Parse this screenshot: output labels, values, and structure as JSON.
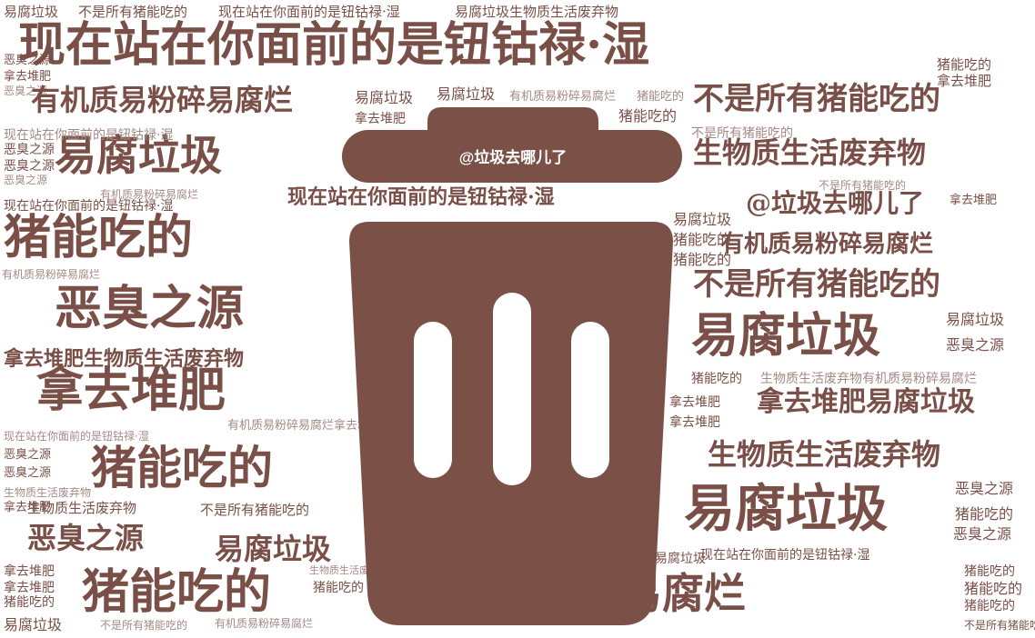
{
  "colors": {
    "word_primary": "#7a4f47",
    "word_light": "#a48a84",
    "can": "#7a5047",
    "background": "#ffffff"
  },
  "trash_can": {
    "icon": "trash-can-icon",
    "handle_label": "@垃圾去哪儿了"
  },
  "words": [
    {
      "text": "易腐垃圾",
      "cls": "tiny",
      "size": 15
    },
    {
      "text": "不是所有猪能吃的",
      "cls": "tiny",
      "size": 15
    },
    {
      "text": "现在站在你面前的是钮钴禄·湿",
      "cls": "tiny",
      "size": 15
    },
    {
      "text": "易腐垃圾生物质生活废弃物",
      "cls": "tiny",
      "size": 15
    },
    {
      "text": "现在站在你面前的是钮钴禄·湿",
      "cls": "big",
      "size": 52
    },
    {
      "text": "恶臭之源",
      "cls": "tiny",
      "size": 13
    },
    {
      "text": "拿去堆肥",
      "cls": "tiny",
      "size": 13
    },
    {
      "text": "恶臭之源",
      "cls": "tiny",
      "size": 12
    },
    {
      "text": "有机质易粉碎易腐烂",
      "cls": "mid",
      "size": 32
    },
    {
      "text": "易腐垃圾",
      "cls": "tiny",
      "size": 16
    },
    {
      "text": "易腐垃圾",
      "cls": "tiny",
      "size": 16
    },
    {
      "text": "有机质易粉碎易腐烂",
      "cls": "tiny",
      "size": 13
    },
    {
      "text": "猪能吃的",
      "cls": "tiny",
      "size": 13
    },
    {
      "text": "猪能吃的",
      "cls": "tiny",
      "size": 16
    },
    {
      "text": "不是所有猪能吃的",
      "cls": "mid",
      "size": 34
    },
    {
      "text": "拿去堆肥",
      "cls": "tiny",
      "size": 15
    },
    {
      "text": "猪能吃的",
      "cls": "tiny",
      "size": 15
    },
    {
      "text": "不是所有猪能吃的",
      "cls": "tiny",
      "size": 12
    },
    {
      "text": "拿去堆肥",
      "cls": "tiny",
      "size": 14
    },
    {
      "text": "易腐垃圾",
      "cls": "big",
      "size": 46
    },
    {
      "text": "生物质生活废弃物",
      "cls": "mid",
      "size": 32
    },
    {
      "text": "恶臭之源",
      "cls": "tiny",
      "size": 14
    },
    {
      "text": "恶臭之源",
      "cls": "tiny",
      "size": 14
    },
    {
      "text": "现在站在你面前的是钮钴禄·湿",
      "cls": "tiny",
      "size": 14
    },
    {
      "text": "不是所有猪能吃的",
      "cls": "tiny",
      "size": 14
    },
    {
      "text": "恶臭之源",
      "cls": "tiny",
      "size": 12
    },
    {
      "text": "现在站在你面前的是钮钴禄·湿",
      "cls": "mid",
      "size": 22
    },
    {
      "text": "@垃圾去哪儿了",
      "cls": "mid",
      "size": 28
    },
    {
      "text": "有机质易粉碎易腐烂",
      "cls": "tiny",
      "size": 12
    },
    {
      "text": "现在站在你面前的是钮钴禄·湿",
      "cls": "tiny",
      "size": 14
    },
    {
      "text": "猪能吃的",
      "cls": "big",
      "size": 52
    },
    {
      "text": "易腐垃圾",
      "cls": "tiny",
      "size": 16
    },
    {
      "text": "猪能吃的",
      "cls": "tiny",
      "size": 16
    },
    {
      "text": "有机质易粉碎易腐烂",
      "cls": "mid",
      "size": 26
    },
    {
      "text": "猪能吃的",
      "cls": "tiny",
      "size": 16
    },
    {
      "text": "不是所有猪能吃的",
      "cls": "mid",
      "size": 34
    },
    {
      "text": "拿去堆肥",
      "cls": "tiny",
      "size": 13
    },
    {
      "text": "恶臭之源",
      "cls": "big",
      "size": 52
    },
    {
      "text": "有机质易粉碎易腐烂",
      "cls": "tiny",
      "size": 12
    },
    {
      "text": "易腐垃圾",
      "cls": "big",
      "size": 52
    },
    {
      "text": "易腐垃圾",
      "cls": "tiny",
      "size": 16
    },
    {
      "text": "恶臭之源",
      "cls": "tiny",
      "size": 16
    },
    {
      "text": "拿去堆肥生物质生活废弃物",
      "cls": "mid",
      "size": 22
    },
    {
      "text": "猪能吃的",
      "cls": "tiny",
      "size": 14
    },
    {
      "text": "生物质生活废弃物有机质易粉碎易腐烂",
      "cls": "tiny",
      "size": 14
    },
    {
      "text": "拿去堆肥",
      "cls": "big",
      "size": 52
    },
    {
      "text": "拿去堆肥易腐垃圾",
      "cls": "mid",
      "size": 30
    },
    {
      "text": "拿去堆肥",
      "cls": "tiny",
      "size": 14
    },
    {
      "text": "拿去堆肥",
      "cls": "tiny",
      "size": 14
    },
    {
      "text": "有机质易粉碎易腐烂拿去堆肥",
      "cls": "tiny",
      "size": 13
    },
    {
      "text": "现在站在你面前的是钮钴禄·湿",
      "cls": "tiny",
      "size": 12
    },
    {
      "text": "生物质生活废弃物",
      "cls": "mid",
      "size": 32
    },
    {
      "text": "恶臭之源",
      "cls": "tiny",
      "size": 13
    },
    {
      "text": "恶臭之源",
      "cls": "tiny",
      "size": 13
    },
    {
      "text": "猪能吃的",
      "cls": "big",
      "size": 50
    },
    {
      "text": "生物质生活废弃物",
      "cls": "tiny",
      "size": 12
    },
    {
      "text": "恶臭之源",
      "cls": "tiny",
      "size": 16
    },
    {
      "text": "拿去堆肥",
      "cls": "tiny",
      "size": 13
    },
    {
      "text": "易腐垃圾",
      "cls": "big",
      "size": 56
    },
    {
      "text": "猪能吃的",
      "cls": "tiny",
      "size": 16
    },
    {
      "text": "生物质生活废弃物",
      "cls": "tiny",
      "size": 15
    },
    {
      "text": "不是所有猪能吃的",
      "cls": "tiny",
      "size": 15
    },
    {
      "text": "恶臭之源",
      "cls": "mid",
      "size": 32
    },
    {
      "text": "易腐垃圾",
      "cls": "mid",
      "size": 32
    },
    {
      "text": "恶臭之源",
      "cls": "tiny",
      "size": 16
    },
    {
      "text": "拿去堆肥",
      "cls": "tiny",
      "size": 14
    },
    {
      "text": "易腐垃圾",
      "cls": "tiny",
      "size": 14
    },
    {
      "text": "现在站在你面前的是钮钴禄·湿",
      "cls": "tiny",
      "size": 14
    },
    {
      "text": "生物质生活废弃物",
      "cls": "tiny",
      "size": 11
    },
    {
      "text": "拿去堆肥",
      "cls": "tiny",
      "size": 14
    },
    {
      "text": "猪能吃的",
      "cls": "big",
      "size": 52
    },
    {
      "text": "猪能吃的",
      "cls": "tiny",
      "size": 14
    },
    {
      "text": "有机质易粉碎易腐烂",
      "cls": "big",
      "size": 46
    },
    {
      "text": "猪能吃的",
      "cls": "tiny",
      "size": 14
    },
    {
      "text": "猪能吃的",
      "cls": "tiny",
      "size": 14
    },
    {
      "text": "猪能吃的",
      "cls": "tiny",
      "size": 16
    },
    {
      "text": "易腐垃圾",
      "cls": "tiny",
      "size": 16
    },
    {
      "text": "不是所有猪能吃的",
      "cls": "tiny",
      "size": 12
    },
    {
      "text": "有机质易粉碎易腐烂",
      "cls": "tiny",
      "size": 12
    },
    {
      "text": "猪能吃的",
      "cls": "tiny",
      "size": 14
    },
    {
      "text": "不是所有猪能吃的",
      "cls": "tiny",
      "size": 12
    }
  ]
}
